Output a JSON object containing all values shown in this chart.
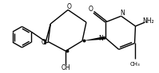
{
  "bg_color": "#ffffff",
  "line_color": "#000000",
  "lw": 1.0,
  "figsize": [
    1.99,
    0.92
  ],
  "dpi": 100,
  "xlim": [
    0,
    199
  ],
  "ylim": [
    0,
    92
  ]
}
